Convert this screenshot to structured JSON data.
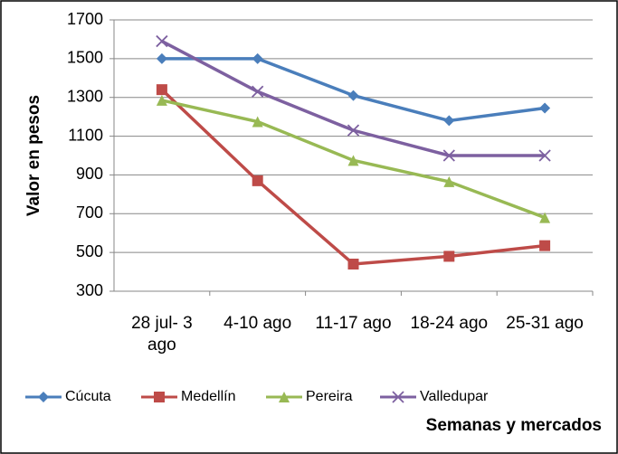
{
  "chart_data": {
    "type": "line",
    "x_label": "Semanas y mercados",
    "y_label": "Valor en pesos",
    "categories": [
      "28 jul- 3 ago",
      "4-10 ago",
      "11-17 ago",
      "18-24 ago",
      "25-31 ago"
    ],
    "series": [
      {
        "name": "Cúcuta",
        "color": "#4a7ebb",
        "marker": "diamond",
        "values": [
          1500,
          1500,
          1310,
          1180,
          1245
        ]
      },
      {
        "name": "Medellín",
        "color": "#be4b48",
        "marker": "square",
        "values": [
          1340,
          870,
          440,
          480,
          535
        ]
      },
      {
        "name": "Pereira",
        "color": "#98b954",
        "marker": "triangle",
        "values": [
          1285,
          1175,
          975,
          865,
          680
        ]
      },
      {
        "name": "Valledupar",
        "color": "#7d60a0",
        "marker": "x",
        "values": [
          1590,
          1330,
          1130,
          1000,
          1000
        ]
      }
    ],
    "ylim": [
      300,
      1700
    ],
    "yticks": [
      300,
      500,
      700,
      900,
      1100,
      1300,
      1500,
      1700
    ],
    "grid": true,
    "legend": "bottom"
  }
}
